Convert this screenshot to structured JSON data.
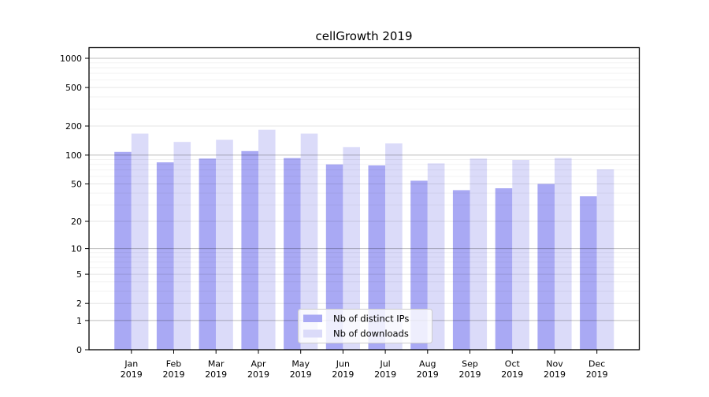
{
  "chart_data": {
    "type": "bar",
    "title": "cellGrowth 2019",
    "categories": [
      "Jan",
      "Feb",
      "Mar",
      "Apr",
      "May",
      "Jun",
      "Jul",
      "Aug",
      "Sep",
      "Oct",
      "Nov",
      "Dec"
    ],
    "category_year": "2019",
    "series": [
      {
        "name": "Nb of distinct IPs",
        "color": "#a9a9f4",
        "values": [
          108,
          84,
          92,
          110,
          93,
          80,
          78,
          54,
          43,
          45,
          50,
          37
        ]
      },
      {
        "name": "Nb of downloads",
        "color": "#dbdbf9",
        "values": [
          167,
          137,
          144,
          183,
          167,
          121,
          132,
          82,
          92,
          89,
          93,
          71
        ]
      }
    ],
    "yscale": "log1p",
    "ytick_values": [
      1000,
      500,
      200,
      100,
      50,
      20,
      10,
      5,
      2,
      1,
      0
    ],
    "ytick_labels": [
      "1000",
      "500",
      "200",
      "100",
      "50",
      "20",
      "10",
      "5",
      "2",
      "1",
      "0"
    ],
    "ylim": [
      0,
      1300
    ],
    "grid": true,
    "legend_position": "lower center",
    "colors": {
      "frame": "#000000",
      "grid_decade": "rgba(0,0,0,0.26)",
      "grid_mid": "rgba(0,0,0,0.10)",
      "grid_minor": "rgba(0,0,0,0.05)",
      "legend_border": "#cccccc",
      "legend_background": "rgba(255,255,255,0.8)"
    }
  }
}
